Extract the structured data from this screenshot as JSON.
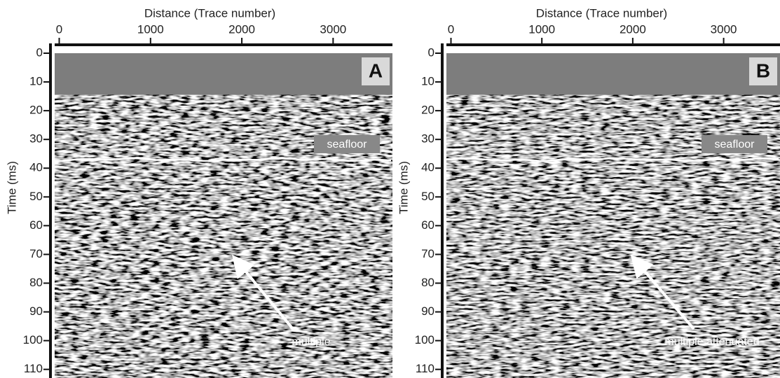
{
  "chart_data": [
    {
      "type": "seismic-section",
      "title": "Distance (Trace number)",
      "y_label": "Time (ms)",
      "panel_label": "A",
      "xlim": [
        -50,
        3650
      ],
      "xticks": [
        0,
        1000,
        2000,
        3000
      ],
      "ylim": [
        0,
        113
      ],
      "yticks": [
        0,
        10,
        20,
        30,
        40,
        50,
        60,
        70,
        80,
        90,
        100,
        110
      ],
      "mute_end": 14.5,
      "seafloor": {
        "label": "seafloor",
        "value": 37
      },
      "annotation": "multiple"
    },
    {
      "type": "seismic-section",
      "title": "Distance (Trace number)",
      "y_label": "Time (ms)",
      "panel_label": "B",
      "xlim": [
        -50,
        3620
      ],
      "xticks": [
        0,
        1000,
        2000,
        3000
      ],
      "ylim": [
        0,
        113
      ],
      "yticks": [
        0,
        10,
        20,
        30,
        40,
        50,
        60,
        70,
        80,
        90,
        100,
        110
      ],
      "mute_end": 14.5,
      "seafloor": {
        "label": "seafloor",
        "value": 37
      },
      "annotation": "multiple attenuated"
    }
  ]
}
